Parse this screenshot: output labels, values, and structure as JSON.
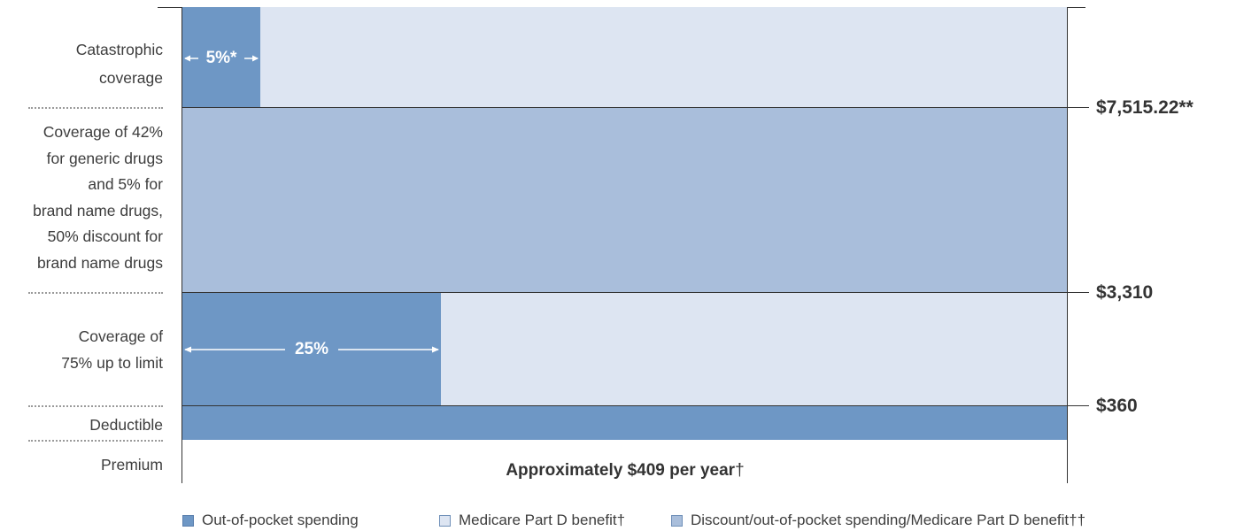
{
  "chart_data": {
    "type": "bar",
    "rows": [
      {
        "label": "Catastrophic coverage",
        "lines": [
          "Catastrophic",
          "coverage"
        ],
        "out_of_pocket_pct": 5,
        "pct_label": "5%*",
        "fill": "split"
      },
      {
        "label": "Coverage of 42% for generic drugs and 5% for brand name drugs, 50% discount for brand name drugs",
        "lines": [
          "Coverage of 42%",
          "for generic drugs",
          "and 5% for",
          "brand name drugs,",
          "50% discount for",
          "brand name drugs"
        ],
        "fill": "discount"
      },
      {
        "label": "Coverage of 75% up to limit",
        "lines": [
          "Coverage of",
          "75% up to limit"
        ],
        "out_of_pocket_pct": 25,
        "pct_label": "25%",
        "fill": "split"
      },
      {
        "label": "Deductible",
        "lines": [
          "Deductible"
        ],
        "out_of_pocket_pct": 100,
        "fill": "out_of_pocket"
      },
      {
        "label": "Premium",
        "lines": [
          "Premium"
        ],
        "fill": "none"
      }
    ],
    "thresholds": [
      "$7,515.22**",
      "$3,310",
      "$360"
    ],
    "premium_text": {
      "bold": "Approximately $409 per year",
      "suffix": "†"
    },
    "legend": [
      {
        "name": "Out-of-pocket spending",
        "color": "#6e97c5"
      },
      {
        "name": "Medicare Part D benefit†",
        "color": "#dde5f2"
      },
      {
        "name": "Discount/out-of-pocket spending/Medicare Part D benefit††",
        "color": "#a9bedb"
      }
    ],
    "colors": {
      "out_of_pocket": "#6e97c5",
      "benefit": "#dde5f2",
      "discount": "#a9bedb"
    }
  }
}
